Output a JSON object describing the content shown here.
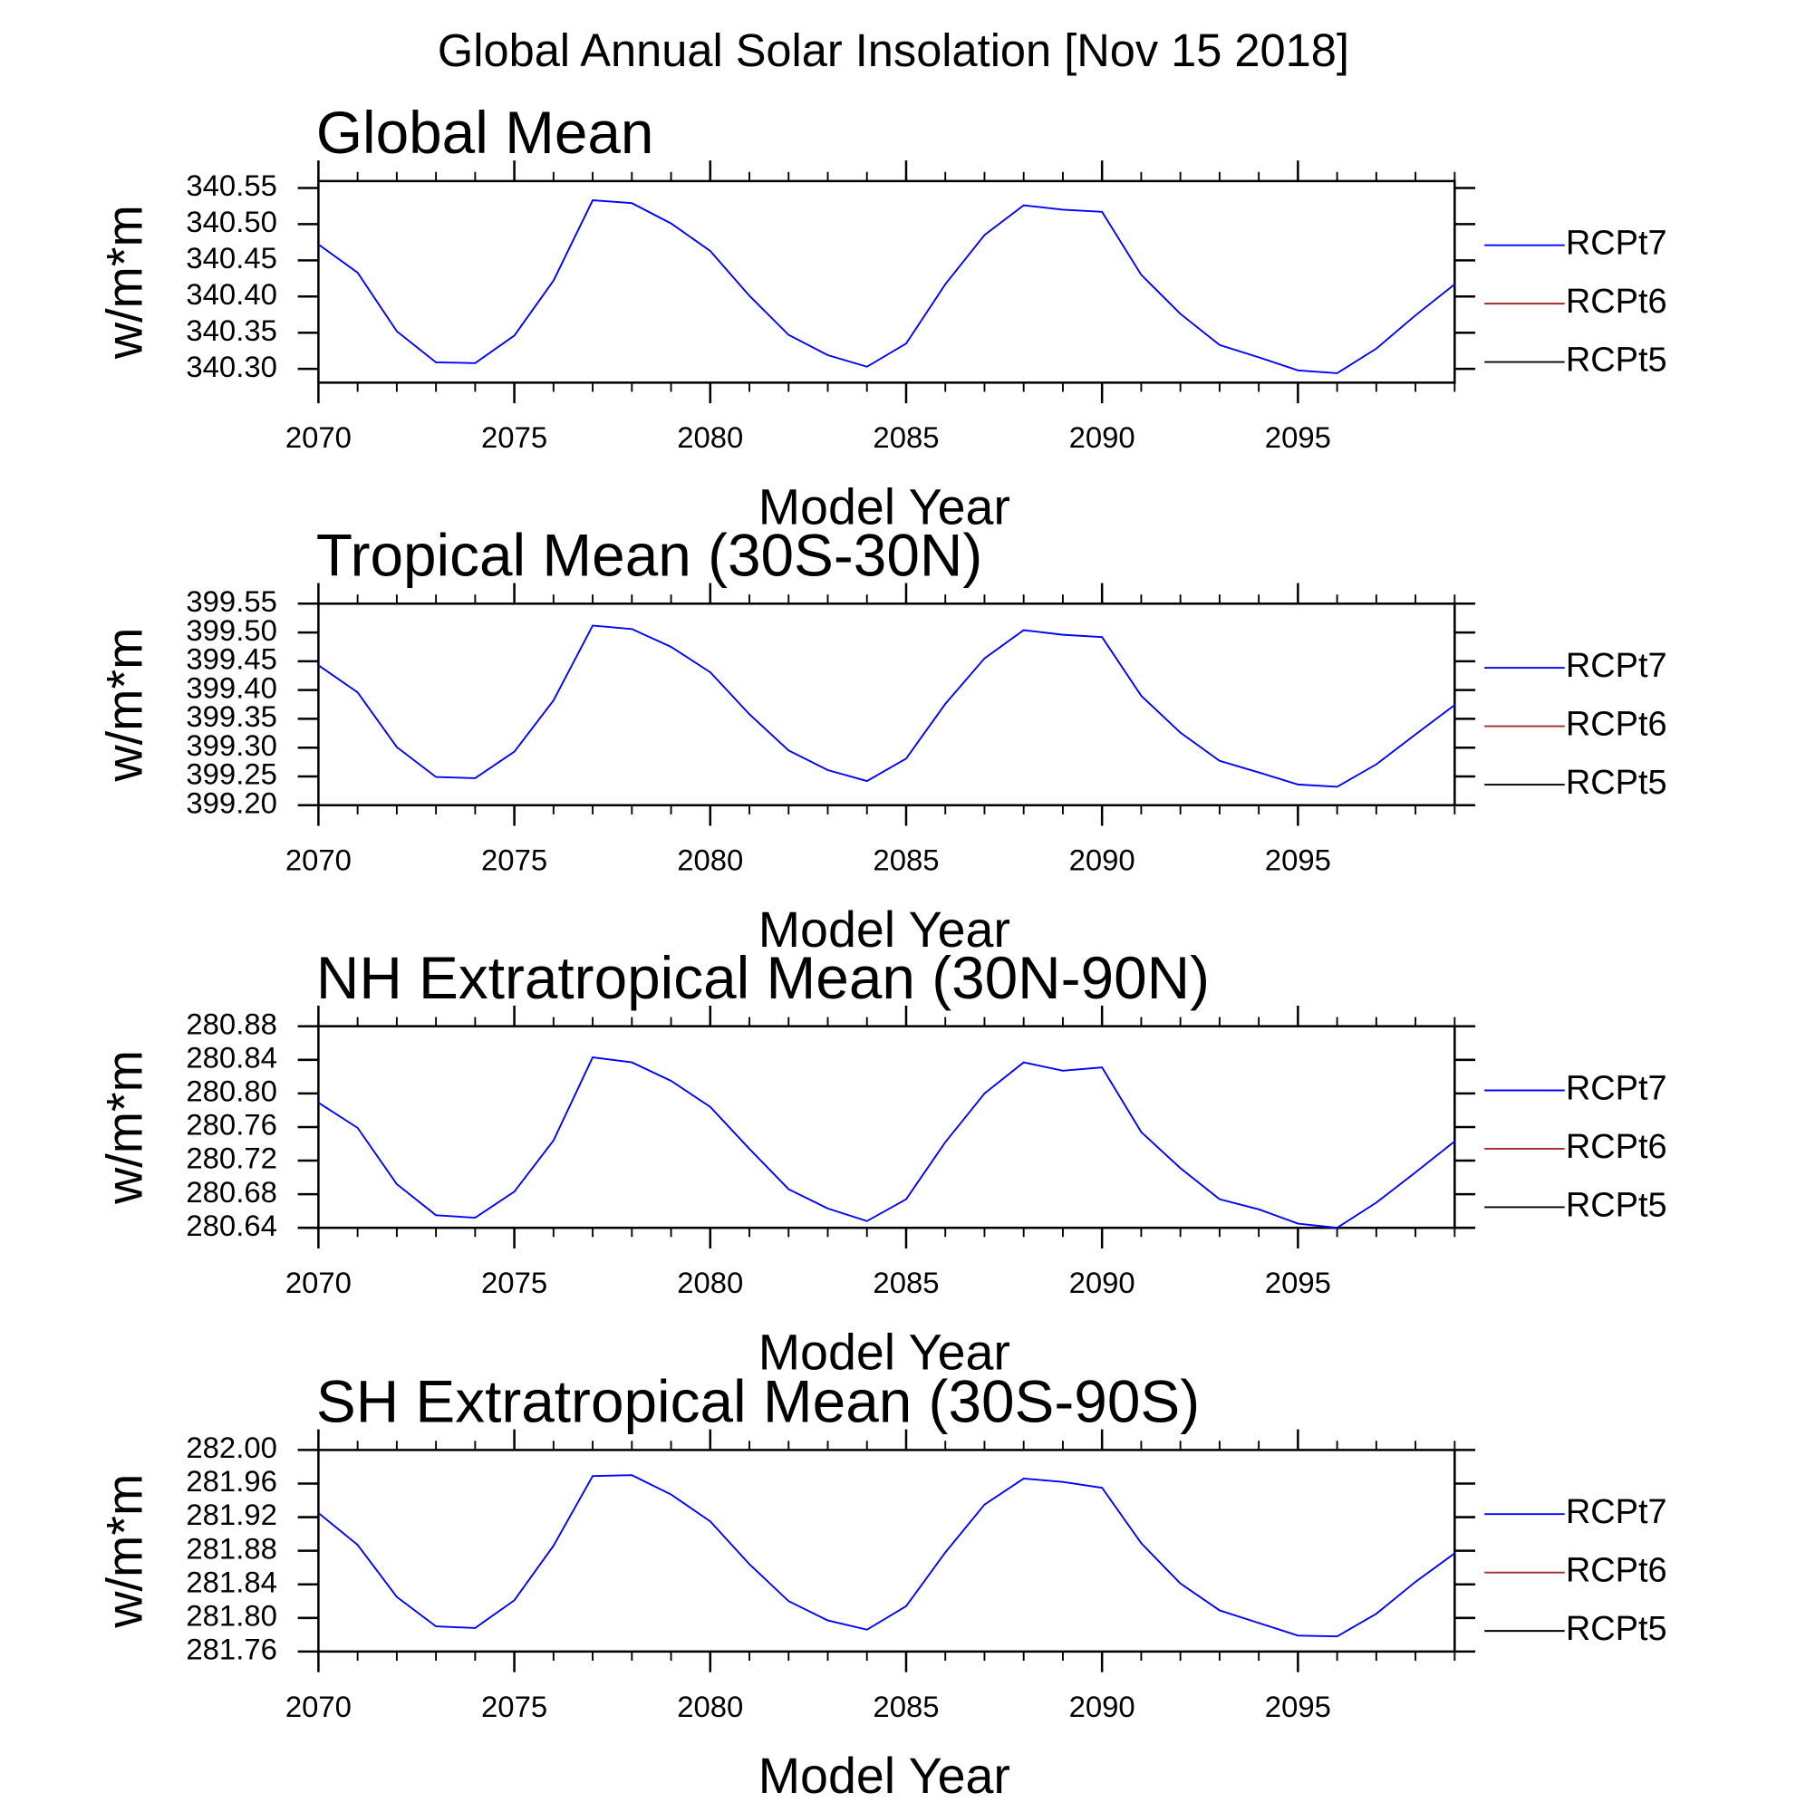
{
  "title": "Global Annual Solar Insolation [Nov 15 2018]",
  "chart_data": [
    {
      "type": "line",
      "title": "Global Mean",
      "xlabel": "Model Year",
      "ylabel": "w/m*m",
      "x": [
        2070,
        2071,
        2072,
        2073,
        2074,
        2075,
        2076,
        2077,
        2078,
        2079,
        2080,
        2081,
        2082,
        2083,
        2084,
        2085,
        2086,
        2087,
        2088,
        2089,
        2090,
        2091,
        2092,
        2093,
        2094,
        2095,
        2096,
        2097,
        2098,
        2099
      ],
      "xlim": [
        2070,
        2099
      ],
      "xticks": [
        2070,
        2075,
        2080,
        2085,
        2090,
        2095
      ],
      "ylim": [
        340.281,
        340.5595
      ],
      "yticks": [
        {
          "value": 340.3,
          "label": "340.30"
        },
        340.35,
        {
          "value": 340.4,
          "label": "340.40"
        },
        340.45,
        {
          "value": 340.5,
          "label": "340.50"
        },
        340.55
      ],
      "series": [
        {
          "name": "RCPt7",
          "color": "#0000ff",
          "values": [
            340.472,
            340.433,
            340.352,
            340.309,
            340.308,
            340.346,
            340.422,
            340.533,
            340.529,
            340.501,
            340.463,
            340.401,
            340.347,
            340.319,
            340.303,
            340.335,
            340.417,
            340.485,
            340.526,
            340.52,
            340.517,
            340.43,
            340.376,
            340.333,
            340.316,
            340.298,
            340.294,
            340.328,
            340.374,
            340.417
          ]
        },
        {
          "name": "RCPt6",
          "color": "#a52a2a",
          "values": [
            null,
            null,
            null,
            null,
            null,
            null,
            null,
            null,
            null,
            null,
            null,
            null,
            null,
            null,
            null,
            null,
            null,
            null,
            null,
            null,
            null,
            null,
            null,
            null,
            null,
            null,
            null,
            null,
            null,
            null
          ]
        },
        {
          "name": "RCPt5",
          "color": "#000000",
          "values": [
            null,
            null,
            null,
            null,
            null,
            null,
            null,
            null,
            null,
            null,
            null,
            null,
            null,
            null,
            null,
            null,
            null,
            null,
            null,
            null,
            null,
            null,
            null,
            null,
            null,
            null,
            null,
            null,
            null,
            null
          ]
        }
      ]
    },
    {
      "type": "line",
      "title": "Tropical Mean (30S-30N)",
      "xlabel": "Model Year",
      "ylabel": "w/m*m",
      "x": [
        2070,
        2071,
        2072,
        2073,
        2074,
        2075,
        2076,
        2077,
        2078,
        2079,
        2080,
        2081,
        2082,
        2083,
        2084,
        2085,
        2086,
        2087,
        2088,
        2089,
        2090,
        2091,
        2092,
        2093,
        2094,
        2095,
        2096,
        2097,
        2098,
        2099
      ],
      "xlim": [
        2070,
        2099
      ],
      "xticks": [
        2070,
        2075,
        2080,
        2085,
        2090,
        2095
      ],
      "ylim": [
        399.2,
        399.55
      ],
      "yticks": [
        {
          "value": 399.2,
          "label": "399.20"
        },
        399.25,
        {
          "value": 399.3,
          "label": "399.30"
        },
        399.35,
        {
          "value": 399.4,
          "label": "399.40"
        },
        399.45,
        {
          "value": 399.5,
          "label": "399.50"
        },
        399.55
      ],
      "series": [
        {
          "name": "RCPt7",
          "color": "#0000ff",
          "values": [
            399.443,
            399.396,
            399.301,
            399.249,
            399.247,
            399.293,
            399.382,
            399.512,
            399.506,
            399.475,
            399.431,
            399.358,
            399.295,
            399.261,
            399.242,
            399.281,
            399.376,
            399.455,
            399.504,
            399.496,
            399.492,
            399.39,
            399.326,
            399.277,
            399.257,
            399.236,
            399.232,
            399.271,
            399.323,
            399.374
          ]
        },
        {
          "name": "RCPt6",
          "color": "#a52a2a",
          "values": [
            null,
            null,
            null,
            null,
            null,
            null,
            null,
            null,
            null,
            null,
            null,
            null,
            null,
            null,
            null,
            null,
            null,
            null,
            null,
            null,
            null,
            null,
            null,
            null,
            null,
            null,
            null,
            null,
            null,
            null
          ]
        },
        {
          "name": "RCPt5",
          "color": "#000000",
          "values": [
            null,
            null,
            null,
            null,
            null,
            null,
            null,
            null,
            null,
            null,
            null,
            null,
            null,
            null,
            null,
            null,
            null,
            null,
            null,
            null,
            null,
            null,
            null,
            null,
            null,
            null,
            null,
            null,
            null,
            null
          ]
        }
      ]
    },
    {
      "type": "line",
      "title": "NH Extratropical Mean (30N-90N)",
      "xlabel": "Model Year",
      "ylabel": "w/m*m",
      "x": [
        2070,
        2071,
        2072,
        2073,
        2074,
        2075,
        2076,
        2077,
        2078,
        2079,
        2080,
        2081,
        2082,
        2083,
        2084,
        2085,
        2086,
        2087,
        2088,
        2089,
        2090,
        2091,
        2092,
        2093,
        2094,
        2095,
        2096,
        2097,
        2098,
        2099
      ],
      "xlim": [
        2070,
        2099
      ],
      "xticks": [
        2070,
        2075,
        2080,
        2085,
        2090,
        2095
      ],
      "ylim": [
        280.64,
        280.88
      ],
      "yticks": [
        280.64,
        280.68,
        280.72,
        280.76,
        {
          "value": 280.8,
          "label": "280.80"
        },
        280.84,
        280.88
      ],
      "series": [
        {
          "name": "RCPt7",
          "color": "#0000ff",
          "values": [
            280.789,
            280.759,
            280.692,
            280.655,
            280.652,
            280.683,
            280.744,
            280.843,
            280.837,
            280.815,
            280.784,
            280.734,
            280.686,
            280.663,
            280.648,
            280.674,
            280.742,
            280.8,
            280.837,
            280.827,
            280.831,
            280.754,
            280.711,
            280.674,
            280.662,
            280.645,
            280.64,
            280.67,
            280.706,
            280.743
          ]
        },
        {
          "name": "RCPt6",
          "color": "#a52a2a",
          "values": [
            null,
            null,
            null,
            null,
            null,
            null,
            null,
            null,
            null,
            null,
            null,
            null,
            null,
            null,
            null,
            null,
            null,
            null,
            null,
            null,
            null,
            null,
            null,
            null,
            null,
            null,
            null,
            null,
            null,
            null
          ]
        },
        {
          "name": "RCPt5",
          "color": "#000000",
          "values": [
            null,
            null,
            null,
            null,
            null,
            null,
            null,
            null,
            null,
            null,
            null,
            null,
            null,
            null,
            null,
            null,
            null,
            null,
            null,
            null,
            null,
            null,
            null,
            null,
            null,
            null,
            null,
            null,
            null,
            null
          ]
        }
      ]
    },
    {
      "type": "line",
      "title": "SH Extratropical Mean (30S-90S)",
      "xlabel": "Model Year",
      "ylabel": "w/m*m",
      "x": [
        2070,
        2071,
        2072,
        2073,
        2074,
        2075,
        2076,
        2077,
        2078,
        2079,
        2080,
        2081,
        2082,
        2083,
        2084,
        2085,
        2086,
        2087,
        2088,
        2089,
        2090,
        2091,
        2092,
        2093,
        2094,
        2095,
        2096,
        2097,
        2098,
        2099
      ],
      "xlim": [
        2070,
        2099
      ],
      "xticks": [
        2070,
        2075,
        2080,
        2085,
        2090,
        2095
      ],
      "ylim": [
        281.76,
        282.0
      ],
      "yticks": [
        281.76,
        {
          "value": 281.8,
          "label": "281.80"
        },
        281.84,
        281.88,
        281.92,
        281.96,
        {
          "value": 282.0,
          "label": "282.00"
        }
      ],
      "series": [
        {
          "name": "RCPt7",
          "color": "#0000ff",
          "values": [
            281.925,
            281.887,
            281.825,
            281.79,
            281.788,
            281.821,
            281.886,
            281.969,
            281.97,
            281.947,
            281.915,
            281.864,
            281.82,
            281.797,
            281.786,
            281.814,
            281.878,
            281.935,
            281.966,
            281.962,
            281.955,
            281.889,
            281.841,
            281.809,
            281.794,
            281.779,
            281.778,
            281.805,
            281.843,
            281.877
          ]
        },
        {
          "name": "RCPt6",
          "color": "#a52a2a",
          "values": [
            null,
            null,
            null,
            null,
            null,
            null,
            null,
            null,
            null,
            null,
            null,
            null,
            null,
            null,
            null,
            null,
            null,
            null,
            null,
            null,
            null,
            null,
            null,
            null,
            null,
            null,
            null,
            null,
            null,
            null
          ]
        },
        {
          "name": "RCPt5",
          "color": "#000000",
          "values": [
            null,
            null,
            null,
            null,
            null,
            null,
            null,
            null,
            null,
            null,
            null,
            null,
            null,
            null,
            null,
            null,
            null,
            null,
            null,
            null,
            null,
            null,
            null,
            null,
            null,
            null,
            null,
            null,
            null,
            null
          ]
        }
      ]
    }
  ]
}
